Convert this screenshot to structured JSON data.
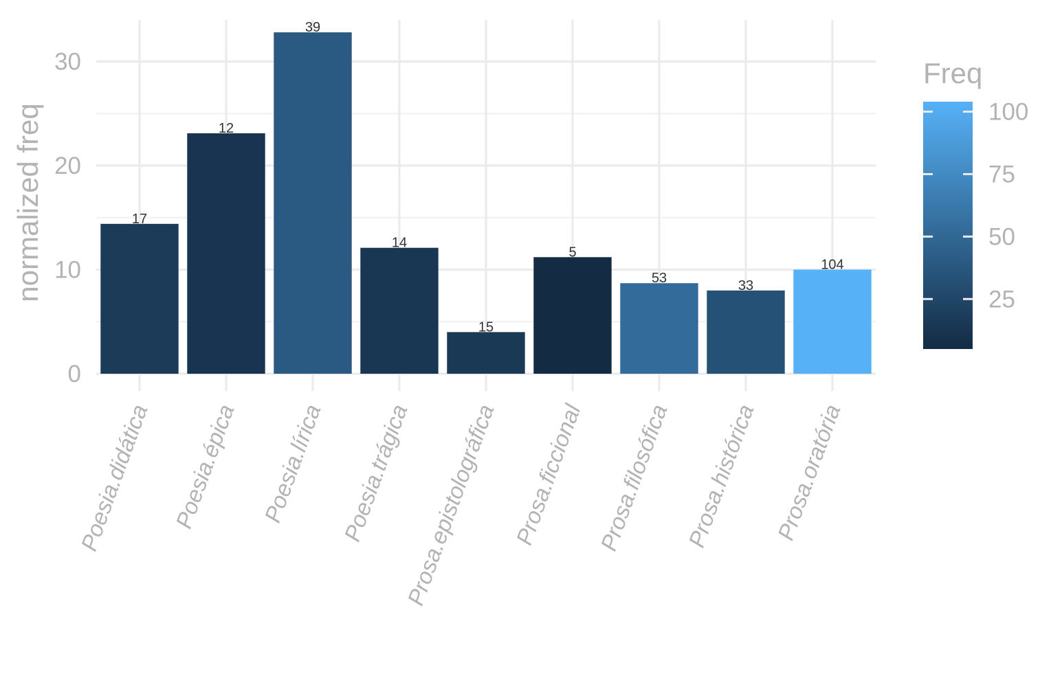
{
  "chart_data": {
    "type": "bar",
    "ylabel": "normalized freq",
    "xlabel": "",
    "ylim": [
      0,
      34
    ],
    "y_ticks": [
      0,
      10,
      20,
      30
    ],
    "categories": [
      "Poesia.didática",
      "Poesia.épica",
      "Poesia.lírica",
      "Poesia.trágica",
      "Prosa.epistolográfica",
      "Prosa.ficcional",
      "Prosa.filosófica",
      "Prosa.histórica",
      "Prosa.oratória"
    ],
    "values": [
      14.4,
      23.1,
      32.8,
      12.1,
      4.0,
      11.2,
      8.7,
      8.0,
      10.0
    ],
    "freq_labels": [
      "17",
      "12",
      "39",
      "14",
      "15",
      "5",
      "53",
      "33",
      "104"
    ],
    "freq_values": [
      17,
      12,
      39,
      14,
      15,
      5,
      53,
      33,
      104
    ],
    "grid": true,
    "legend": {
      "title": "Freq",
      "placement": "right",
      "type": "colorbar",
      "range": [
        5,
        104
      ],
      "ticks": [
        25,
        50,
        75,
        100
      ],
      "low_color": "#132B43",
      "high_color": "#56B1F7"
    }
  }
}
